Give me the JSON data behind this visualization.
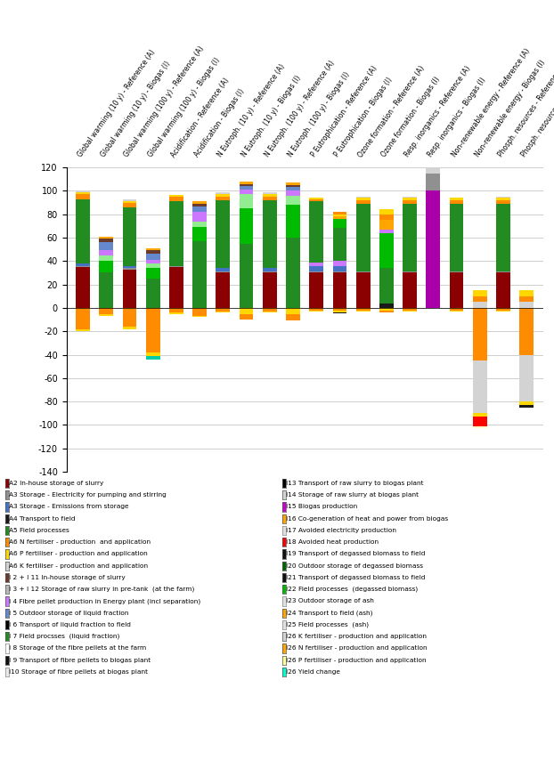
{
  "categories": [
    "Global warming (10 y) - Reference (A)",
    "Global warming (10 y) - Biogas (I)",
    "Global warming (100 y) - Reference (A)",
    "Global warming (100 y) - Biogas (I)",
    "Acidification - Reference (A)",
    "Acidification - Biogas (I)",
    "N Eutroph. (10 y) - Reference (A)",
    "N Eutroph. (10 y) - Biogas (I)",
    "N Eutroph. (100 y) - Reference (A)",
    "N Eutroph. (100 y) - Biogas (I)",
    "P Eutrophication - Reference (A)",
    "P Eutrophication - Biogas (I)",
    "Ozone formation - Reference (A)",
    "Ozone formation - Biogas (I)",
    "Resp. inorganics - Reference (A)",
    "Resp. inorganics - Biogas (I)",
    "Non-renewable energy - Reference (A)",
    "Non-renewable energy - Biogas (I)",
    "Phosph. resources - Reference (A)",
    "Phosph. resources - Biogas (I)"
  ],
  "ylim": [
    -140,
    120
  ],
  "bar_groups": [
    [
      [
        "#8B0000",
        35
      ],
      [
        "#909090",
        1
      ],
      [
        "#4472C4",
        2
      ],
      [
        "#228B22",
        55
      ],
      [
        "#FF8C00",
        4
      ],
      [
        "#FFD700",
        1.5
      ],
      [
        "#D3D3D3",
        1.5
      ],
      [
        "#FF8C00",
        -18
      ],
      [
        "#FFD700",
        -2
      ]
    ],
    [
      [
        "#228B22",
        30
      ],
      [
        "#00BB00",
        10
      ],
      [
        "#90EE90",
        5
      ],
      [
        "#CC77FF",
        4
      ],
      [
        "#6688CC",
        7
      ],
      [
        "#6B3A2A",
        3
      ],
      [
        "#FFA500",
        2
      ],
      [
        "#FF8C00",
        -5
      ],
      [
        "#FFD700",
        -2
      ]
    ],
    [
      [
        "#8B0000",
        33
      ],
      [
        "#909090",
        1
      ],
      [
        "#4472C4",
        2
      ],
      [
        "#228B22",
        50
      ],
      [
        "#FF8C00",
        4
      ],
      [
        "#FFD700",
        1.5
      ],
      [
        "#D3D3D3",
        1.5
      ],
      [
        "#FF8C00",
        -16
      ],
      [
        "#FFD700",
        -2
      ]
    ],
    [
      [
        "#228B22",
        25
      ],
      [
        "#00BB00",
        9
      ],
      [
        "#90EE90",
        4
      ],
      [
        "#CC77FF",
        3
      ],
      [
        "#6688CC",
        5
      ],
      [
        "#6B3A2A",
        3
      ],
      [
        "#FFA500",
        2
      ],
      [
        "#FF8C00",
        -38
      ],
      [
        "#FFD700",
        -3
      ],
      [
        "#00CCAA",
        -3
      ]
    ],
    [
      [
        "#8B0000",
        35
      ],
      [
        "#909090",
        1
      ],
      [
        "#228B22",
        55
      ],
      [
        "#FF8C00",
        4
      ],
      [
        "#FFD700",
        1.5
      ],
      [
        "#FF8C00",
        -4
      ],
      [
        "#FFD700",
        -1
      ]
    ],
    [
      [
        "#228B22",
        57
      ],
      [
        "#00BB00",
        12
      ],
      [
        "#90EE90",
        5
      ],
      [
        "#CC77FF",
        8
      ],
      [
        "#6688CC",
        5
      ],
      [
        "#6B3A2A",
        2
      ],
      [
        "#FFA500",
        2
      ],
      [
        "#FF8C00",
        -7
      ],
      [
        "#FFD700",
        -1
      ]
    ],
    [
      [
        "#8B0000",
        30
      ],
      [
        "#909090",
        1
      ],
      [
        "#4472C4",
        3
      ],
      [
        "#228B22",
        58
      ],
      [
        "#FF8C00",
        3
      ],
      [
        "#FFD700",
        2
      ],
      [
        "#D3D3D3",
        2
      ],
      [
        "#FF8C00",
        -3
      ],
      [
        "#FFD700",
        -0.5
      ]
    ],
    [
      [
        "#228B22",
        55
      ],
      [
        "#00BB00",
        30
      ],
      [
        "#90EE90",
        12
      ],
      [
        "#CC77FF",
        4
      ],
      [
        "#6688CC",
        3
      ],
      [
        "#6B3A2A",
        2
      ],
      [
        "#FFA500",
        2
      ],
      [
        "#FFD700",
        -5
      ],
      [
        "#FF8C00",
        -5
      ]
    ],
    [
      [
        "#8B0000",
        30
      ],
      [
        "#909090",
        1
      ],
      [
        "#4472C4",
        3
      ],
      [
        "#228B22",
        58
      ],
      [
        "#FF8C00",
        3
      ],
      [
        "#FFD700",
        2
      ],
      [
        "#D3D3D3",
        2
      ],
      [
        "#FF8C00",
        -3
      ],
      [
        "#FFD700",
        -0.5
      ]
    ],
    [
      [
        "#228B22",
        60
      ],
      [
        "#00BB00",
        28
      ],
      [
        "#90EE90",
        8
      ],
      [
        "#CC77FF",
        4
      ],
      [
        "#6688CC",
        3
      ],
      [
        "#6B3A2A",
        2
      ],
      [
        "#FFA500",
        2
      ],
      [
        "#FFD700",
        -5
      ],
      [
        "#FF8C00",
        -6
      ]
    ],
    [
      [
        "#8B0000",
        30
      ],
      [
        "#909090",
        1
      ],
      [
        "#4472C4",
        5
      ],
      [
        "#CC77FF",
        3
      ],
      [
        "#228B22",
        52
      ],
      [
        "#FF8C00",
        2
      ],
      [
        "#FFD700",
        1
      ],
      [
        "#FF8C00",
        -2
      ],
      [
        "#FFD700",
        -1
      ]
    ],
    [
      [
        "#8B0000",
        30
      ],
      [
        "#909090",
        1
      ],
      [
        "#4472C4",
        5
      ],
      [
        "#CC77FF",
        4
      ],
      [
        "#228B22",
        28
      ],
      [
        "#00BB00",
        8
      ],
      [
        "#FFA500",
        2
      ],
      [
        "#FFD700",
        2
      ],
      [
        "#FF8C00",
        2
      ],
      [
        "#FF8C00",
        -2
      ],
      [
        "#FFD700",
        -2
      ],
      [
        "#1A1A1A",
        -0.5
      ]
    ],
    [
      [
        "#8B0000",
        30
      ],
      [
        "#909090",
        1
      ],
      [
        "#228B22",
        58
      ],
      [
        "#FF8C00",
        3
      ],
      [
        "#FFD700",
        2
      ],
      [
        "#D3D3D3",
        1
      ],
      [
        "#FF8C00",
        -2
      ],
      [
        "#FFD700",
        -1
      ]
    ],
    [
      [
        "#1A1A1A",
        4
      ],
      [
        "#228B22",
        30
      ],
      [
        "#00BB00",
        30
      ],
      [
        "#CC77FF",
        3
      ],
      [
        "#FFA500",
        8
      ],
      [
        "#FF8C00",
        5
      ],
      [
        "#FFD700",
        4
      ],
      [
        "#FFD700",
        -2
      ],
      [
        "#FF8C00",
        -2
      ]
    ],
    [
      [
        "#8B0000",
        30
      ],
      [
        "#909090",
        1
      ],
      [
        "#228B22",
        58
      ],
      [
        "#FF8C00",
        3
      ],
      [
        "#FFD700",
        2
      ],
      [
        "#D3D3D3",
        1
      ],
      [
        "#FF8C00",
        -2
      ],
      [
        "#FFD700",
        -1
      ]
    ],
    [
      [
        "#AA00AA",
        100
      ],
      [
        "#909090",
        15
      ],
      [
        "#D3D3D3",
        5
      ]
    ],
    [
      [
        "#8B0000",
        30
      ],
      [
        "#909090",
        1
      ],
      [
        "#228B22",
        58
      ],
      [
        "#FF8C00",
        3
      ],
      [
        "#FFD700",
        2
      ],
      [
        "#FF8C00",
        -2
      ],
      [
        "#FFD700",
        -1
      ]
    ],
    [
      [
        "#D3D3D3",
        5
      ],
      [
        "#FF8C00",
        5
      ],
      [
        "#FFD700",
        5
      ],
      [
        "#FF8C00",
        -45
      ],
      [
        "#D3D3D3",
        -45
      ],
      [
        "#FFD700",
        -3
      ],
      [
        "#FF0000",
        -8
      ],
      [
        "#FFFFCC",
        -2
      ]
    ],
    [
      [
        "#8B0000",
        30
      ],
      [
        "#909090",
        1
      ],
      [
        "#228B22",
        58
      ],
      [
        "#FF8C00",
        3
      ],
      [
        "#FFD700",
        2
      ],
      [
        "#D3D3D3",
        1
      ],
      [
        "#FF8C00",
        -2
      ],
      [
        "#FFD700",
        -1
      ]
    ],
    [
      [
        "#D3D3D3",
        5
      ],
      [
        "#FF8C00",
        5
      ],
      [
        "#FFD700",
        5
      ],
      [
        "#FF8C00",
        -40
      ],
      [
        "#D3D3D3",
        -40
      ],
      [
        "#FFD700",
        -3
      ],
      [
        "#1A1A1A",
        -2
      ]
    ]
  ],
  "legend_data": [
    [
      "#8B0000",
      "A2 In-house storage of slurry"
    ],
    [
      "#909090",
      "A3 Storage - Electricity for pumping and stirring"
    ],
    [
      "#4472C4",
      "A3 Storage - Emissions from storage"
    ],
    [
      "#1A1A1A",
      "A4 Transport to field"
    ],
    [
      "#228B22",
      "A5 Field processes"
    ],
    [
      "#FF8C00",
      "A6 N fertiliser - production  and application"
    ],
    [
      "#FFD700",
      "A6 P fertiliser - production and application"
    ],
    [
      "#D3D3D3",
      "A6 K fertiliser - production and application"
    ],
    [
      "#6B3A2A",
      "I 2 + I 11 In-house storage of slurry"
    ],
    [
      "#B8B8B8",
      "I 3 + I 12 Storage of raw slurry in pre-tank  (at the farm)"
    ],
    [
      "#CC77FF",
      "I 4 Fibre pellet production in Energy plant (incl separation)"
    ],
    [
      "#6688CC",
      "I 5 Outdoor storage of liquid fraction"
    ],
    [
      "#000000",
      "I 6 Transport of liquid fraction to field"
    ],
    [
      "#228B22",
      "I 7 Field procsses  (liquid fraction)"
    ],
    [
      "#FFFFFF",
      "I 8 Storage of the fibre pellets at the farm"
    ],
    [
      "#111111",
      "I 9 Transport of fibre pellets to biogas plant"
    ],
    [
      "#E8E8E8",
      "I10 Storage of fibre pellets at biogas plant"
    ],
    [
      "#000000",
      "I13 Transport of raw slurry to biogas plant"
    ],
    [
      "#D3D3D3",
      "I14 Storage of raw slurry at biogas plant"
    ],
    [
      "#CC00CC",
      "I15 Biogas production"
    ],
    [
      "#FFA500",
      "I16 Co-generation of heat and power from biogas"
    ],
    [
      "#E0E0E0",
      "I17 Avoided electricity production"
    ],
    [
      "#FF0000",
      "I18 Avoided heat production"
    ],
    [
      "#111111",
      "I19 Transport of degassed biomass to field"
    ],
    [
      "#006600",
      "I20 Outdoor storage of degassed biomass"
    ],
    [
      "#111111",
      "I21 Transport of degassed biomass to field"
    ],
    [
      "#00BB00",
      "I22 Field processes  (degassed biomass)"
    ],
    [
      "#E0E0E0",
      "I23 Outdoor storage of ash"
    ],
    [
      "#FFA500",
      "I24 Transport to field (ash)"
    ],
    [
      "#E0E0E0",
      "I25 Field processes  (ash)"
    ],
    [
      "#D3D3D3",
      "I26 K fertiliser - production and application"
    ],
    [
      "#FFA500",
      "I26 N fertiliser - production and application"
    ],
    [
      "#FFFF99",
      "I26 P fertiliser - production and application"
    ],
    [
      "#00FFCC",
      "I26 Yield change"
    ]
  ]
}
